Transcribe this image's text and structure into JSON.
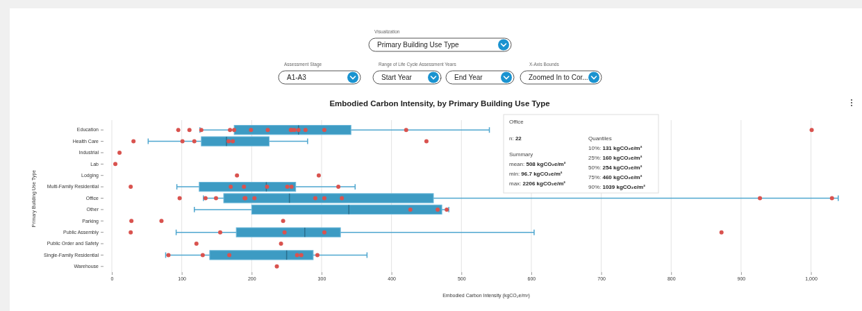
{
  "chart_data": {
    "type": "box",
    "orientation": "horizontal",
    "title": "Embodied Carbon Intensity, by Primary Building Use Type",
    "xlabel": "Embodied Carbon Intensity (kgCO₂e/m²)",
    "ylabel": "Primary Building Use Type",
    "categories": [
      "Education",
      "Health Care",
      "Industrial",
      "Lab",
      "Lodging",
      "Multi-Family Residential",
      "Office",
      "Other",
      "Parking",
      "Public Assembly",
      "Public Order and Safety",
      "Single-Family Residential",
      "Warehouse"
    ],
    "xlim": [
      0,
      1070
    ],
    "xticks": [
      0,
      100,
      200,
      300,
      400,
      500,
      600,
      700,
      800,
      900,
      {
        "value": 1000,
        "label": "1,000"
      }
    ],
    "grid": "x",
    "marker": "circle",
    "series": [
      {
        "type": "box",
        "color": "#3d9bc3",
        "boxes": [
          {
            "low": 126,
            "q1": 175,
            "median": 267,
            "q3": 342,
            "high": 540
          },
          {
            "low": 52,
            "q1": 128,
            "median": 164,
            "q3": 225,
            "high": 280
          },
          null,
          null,
          null,
          {
            "low": 93,
            "q1": 125,
            "median": 221,
            "q3": 263,
            "high": 348
          },
          {
            "low": 131,
            "q1": 160,
            "median": 254,
            "q3": 460,
            "high": 1039
          },
          {
            "low": 118,
            "q1": 200,
            "median": 339,
            "q3": 472,
            "high": 482
          },
          null,
          {
            "low": 92,
            "q1": 178,
            "median": 276,
            "q3": 327,
            "high": 604
          },
          null,
          {
            "low": 77,
            "q1": 140,
            "median": 250,
            "q3": 288,
            "high": 365
          },
          null
        ]
      },
      {
        "type": "scatter",
        "color": "#d9534f",
        "x": [
          "Education",
          "Education",
          "Education",
          "Education",
          "Education",
          "Education",
          "Education",
          "Education",
          "Education",
          "Education",
          "Education",
          "Education",
          "Education",
          "Education",
          "Education",
          "Health Care",
          "Health Care",
          "Health Care",
          "Health Care",
          "Health Care",
          "Health Care",
          "Industrial",
          "Lab",
          "Lodging",
          "Lodging",
          "Multi-Family Residential",
          "Multi-Family Residential",
          "Multi-Family Residential",
          "Multi-Family Residential",
          "Multi-Family Residential",
          "Multi-Family Residential",
          "Multi-Family Residential",
          "Office",
          "Office",
          "Office",
          "Office",
          "Office",
          "Office",
          "Office",
          "Office",
          "Office",
          "Office",
          "Office",
          "Other",
          "Other",
          "Other",
          "Parking",
          "Parking",
          "Parking",
          "Public Assembly",
          "Public Assembly",
          "Public Assembly",
          "Public Assembly",
          "Public Assembly",
          "Public Order and Safety",
          "Public Order and Safety",
          "Single-Family Residential",
          "Single-Family Residential",
          "Single-Family Residential",
          "Single-Family Residential",
          "Single-Family Residential",
          "Single-Family Residential",
          "Warehouse"
        ],
        "values": [
          95,
          111,
          128,
          169,
          175,
          199,
          223,
          256,
          257,
          261,
          267,
          277,
          304,
          421,
          1001,
          31,
          101,
          118,
          167,
          173,
          450,
          11,
          5,
          179,
          296,
          27,
          170,
          189,
          222,
          251,
          257,
          324,
          97,
          134,
          149,
          190,
          191,
          204,
          291,
          304,
          329,
          927,
          1030,
          427,
          466,
          479,
          28,
          71,
          245,
          27,
          155,
          247,
          304,
          872,
          121,
          242,
          81,
          130,
          168,
          265,
          271,
          294,
          236
        ]
      }
    ],
    "annotations": [
      "Visualization",
      "Primary Building Use Type",
      "Assessment Stage",
      "A1-A3",
      "Range of Life Cycle Assessment Years",
      "Start Year",
      "-",
      "End Year",
      "X-Axis Bounds",
      "Zoomed In to Cor...",
      "Office",
      "n: 22",
      "Summary",
      "mean: 508 kgCO₂e/m²",
      "min: 96.7 kgCO₂e/m²",
      "max: 2206 kgCO₂e/m²",
      "Quantiles",
      "10%: 131 kgCO₂e/m²",
      "25%: 160 kgCO₂e/m²",
      "50%: 254 kgCO₂e/m²",
      "75%: 460 kgCO₂e/m²",
      "90%: 1039 kgCO₂e/m²"
    ]
  }
}
